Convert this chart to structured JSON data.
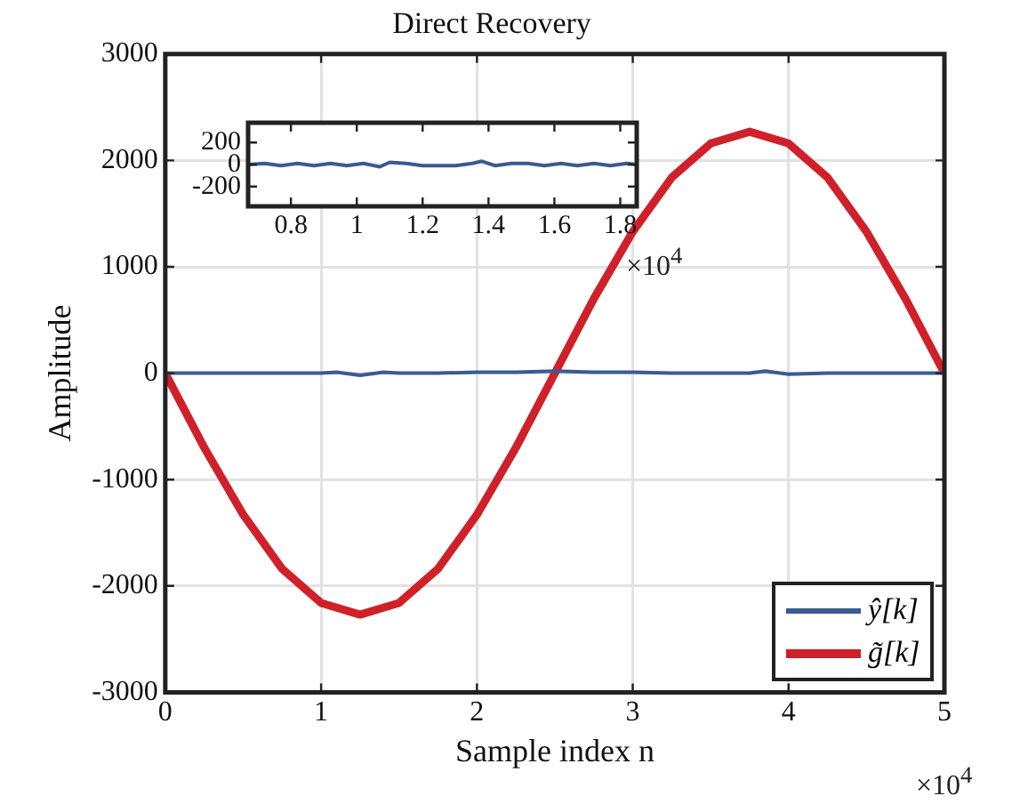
{
  "chart_data": [
    {
      "type": "line",
      "title": "Direct Recovery",
      "xlabel": "Sample index n",
      "ylabel": "Amplitude",
      "xlim": [
        0,
        5
      ],
      "xticks": [
        0,
        1,
        2,
        3,
        4,
        5
      ],
      "ylim": [
        -3000,
        3000
      ],
      "yticks": [
        -3000,
        -2000,
        -1000,
        0,
        1000,
        2000,
        3000
      ],
      "grid": true,
      "legend": "bottom right",
      "annotations": [
        "×10$^{4}$"
      ],
      "series": [
        {
          "name": "ŷ[k]",
          "color": "#3b5a92",
          "x": [
            0,
            0.25,
            0.5,
            0.75,
            1,
            1.1,
            1.25,
            1.4,
            1.5,
            1.75,
            2,
            2.25,
            2.5,
            2.75,
            3,
            3.25,
            3.5,
            3.75,
            3.85,
            4,
            4.25,
            4.5,
            4.75,
            5
          ],
          "values": [
            0,
            0,
            0,
            0,
            0,
            10,
            -20,
            10,
            0,
            0,
            10,
            10,
            20,
            10,
            10,
            0,
            0,
            0,
            20,
            -10,
            0,
            0,
            0,
            0
          ]
        },
        {
          "name": "g̃[k]",
          "color": "#d0202a",
          "x": [
            0,
            0.25,
            0.5,
            0.75,
            1,
            1.25,
            1.5,
            1.75,
            2,
            2.25,
            2.5,
            2.75,
            3,
            3.25,
            3.5,
            3.75,
            4,
            4.25,
            4.5,
            4.75,
            5
          ],
          "values": [
            0,
            -700,
            -1330,
            -1840,
            -2160,
            -2270,
            -2160,
            -1840,
            -1330,
            -700,
            0,
            700,
            1330,
            1840,
            2160,
            2270,
            2160,
            1840,
            1330,
            700,
            0
          ]
        }
      ]
    },
    {
      "type": "line",
      "xlim": [
        0.67,
        1.85
      ],
      "xticks": [
        0.8,
        1,
        1.2,
        1.4,
        1.6,
        1.8
      ],
      "ylim": [
        -380,
        380
      ],
      "yticks": [
        -200,
        0,
        200
      ],
      "grid": false,
      "annotations": [
        "×10$^{4}$"
      ],
      "series": [
        {
          "color": "#3b5a92",
          "x": [
            0.67,
            0.72,
            0.77,
            0.82,
            0.87,
            0.92,
            0.97,
            1.02,
            1.07,
            1.1,
            1.15,
            1.2,
            1.25,
            1.3,
            1.35,
            1.38,
            1.42,
            1.47,
            1.52,
            1.57,
            1.62,
            1.67,
            1.72,
            1.77,
            1.82,
            1.85
          ],
          "values": [
            0,
            10,
            -10,
            10,
            -10,
            10,
            -10,
            10,
            -20,
            20,
            10,
            -10,
            -10,
            -10,
            10,
            30,
            -10,
            10,
            10,
            -10,
            10,
            -10,
            10,
            -10,
            10,
            0
          ]
        }
      ]
    }
  ]
}
